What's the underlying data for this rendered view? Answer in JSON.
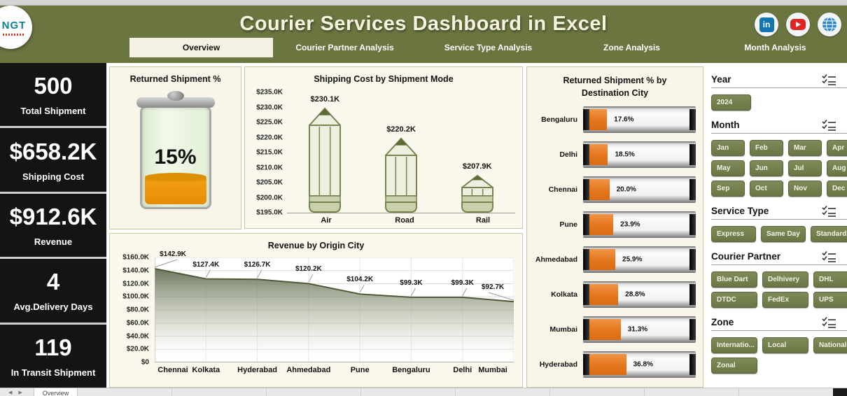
{
  "window": {
    "sheet_tab": "Overview"
  },
  "header": {
    "title": "Courier Services Dashboard in Excel",
    "logo_text": "NGT",
    "social": [
      "linkedin",
      "youtube",
      "globe"
    ]
  },
  "tabs": [
    {
      "label": "Overview",
      "active": true
    },
    {
      "label": "Courier Partner Analysis",
      "active": false
    },
    {
      "label": "Service Type Analysis",
      "active": false
    },
    {
      "label": "Zone Analysis",
      "active": false
    },
    {
      "label": "Month Analysis",
      "active": false
    }
  ],
  "kpis": [
    {
      "value": "500",
      "label": "Total Shipment"
    },
    {
      "value": "$658.2K",
      "label": "Shipping Cost"
    },
    {
      "value": "$912.6K",
      "label": "Revenue"
    },
    {
      "value": "4",
      "label": "Avg.Delivery Days"
    },
    {
      "value": "119",
      "label": "In Transit Shipment"
    }
  ],
  "chart_data": [
    {
      "type": "gauge",
      "title": "Returned Shipment %",
      "value": 15,
      "value_label": "15%",
      "fill_color": "#e8890c"
    },
    {
      "type": "bar",
      "bar_style": "pencil",
      "title": "Shipping Cost by Shipment Mode",
      "categories": [
        "Air",
        "Road",
        "Rail"
      ],
      "values": [
        230.1,
        220.2,
        207.9
      ],
      "value_labels": [
        "$230.1K",
        "$220.2K",
        "$207.9K"
      ],
      "ylim": [
        195,
        235
      ],
      "ytick_labels": [
        "$235.0K",
        "$230.0K",
        "$225.0K",
        "$220.0K",
        "$215.0K",
        "$210.0K",
        "$205.0K",
        "$200.0K",
        "$195.0K"
      ],
      "ylabel": "",
      "xlabel": "",
      "grid": false
    },
    {
      "type": "bar",
      "orientation": "horizontal",
      "title": "Returned Shipment % by Destination City",
      "categories": [
        "Bengaluru",
        "Delhi",
        "Chennai",
        "Pune",
        "Ahmedabad",
        "Kolkata",
        "Mumbai",
        "Hyderabad"
      ],
      "values": [
        17.6,
        18.5,
        20.0,
        23.9,
        25.9,
        28.8,
        31.3,
        36.8
      ],
      "value_labels": [
        "17.6%",
        "18.5%",
        "20.0%",
        "23.9%",
        "25.9%",
        "28.8%",
        "31.3%",
        "36.8%"
      ],
      "xlim": [
        0,
        100
      ],
      "bar_color": "#e87b26",
      "grid": false
    },
    {
      "type": "area",
      "title": "Revenue by Origin City",
      "categories": [
        "Chennai",
        "Kolkata",
        "Hyderabad",
        "Ahmedabad",
        "Pune",
        "Bengaluru",
        "Delhi",
        "Mumbai"
      ],
      "values": [
        142.9,
        127.4,
        126.7,
        120.2,
        104.2,
        99.3,
        99.3,
        92.7
      ],
      "value_labels": [
        "$142.9K",
        "$127.4K",
        "$126.7K",
        "$120.2K",
        "$104.2K",
        "$99.3K",
        "$99.3K",
        "$92.7K"
      ],
      "ylim": [
        0,
        160
      ],
      "ytick_labels": [
        "$160.0K",
        "$140.0K",
        "$120.0K",
        "$100.0K",
        "$80.0K",
        "$60.0K",
        "$40.0K",
        "$20.0K",
        "$0"
      ],
      "grid": true,
      "line_color": "#4d5836"
    }
  ],
  "filters": {
    "year": {
      "label": "Year",
      "options": [
        "2024"
      ]
    },
    "month": {
      "label": "Month",
      "options": [
        "Jan",
        "Feb",
        "Mar",
        "Apr",
        "May",
        "Jun",
        "Jul",
        "Aug",
        "Sep",
        "Oct",
        "Nov",
        "Dec"
      ]
    },
    "service_type": {
      "label": "Service Type",
      "options": [
        "Express",
        "Same Day",
        "Standard"
      ]
    },
    "courier_partner": {
      "label": "Courier Partner",
      "options": [
        "Blue Dart",
        "Delhivery",
        "DHL",
        "DTDC",
        "FedEx",
        "UPS"
      ]
    },
    "zone": {
      "label": "Zone",
      "options": [
        "Internatio...",
        "Local",
        "National",
        "Zonal"
      ]
    }
  },
  "colors": {
    "accent_olive": "#6b7540",
    "kpi_bg": "#141414",
    "card_bg": "#f9f6e9",
    "orange": "#e87b26",
    "slicer_green": "#73804d"
  }
}
